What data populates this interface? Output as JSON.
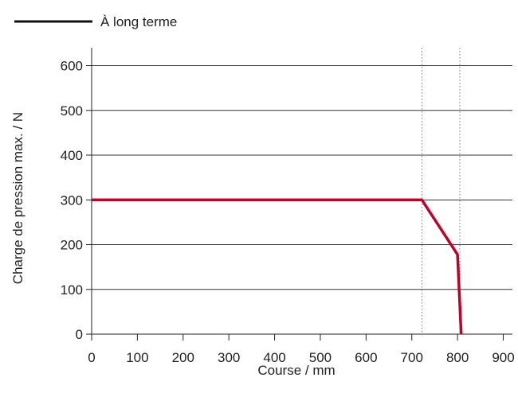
{
  "chart_data": {
    "type": "line",
    "legend": {
      "placement": "top-left",
      "label": "À long terme",
      "swatch_color": "#111111"
    },
    "xlabel": "Course / mm",
    "ylabel": "Charge de pression max. / N",
    "xlim": [
      0,
      920
    ],
    "ylim": [
      0,
      640
    ],
    "x_ticks": [
      0,
      100,
      200,
      300,
      400,
      500,
      600,
      700,
      800,
      900
    ],
    "y_ticks": [
      0,
      100,
      200,
      300,
      400,
      500,
      600
    ],
    "grid": "horizontal",
    "reference_lines_x": [
      722,
      805
    ],
    "series": [
      {
        "color": "#c0002a",
        "x": [
          0,
          722,
          800,
          808
        ],
        "y": [
          300,
          300,
          178,
          0
        ]
      }
    ]
  }
}
